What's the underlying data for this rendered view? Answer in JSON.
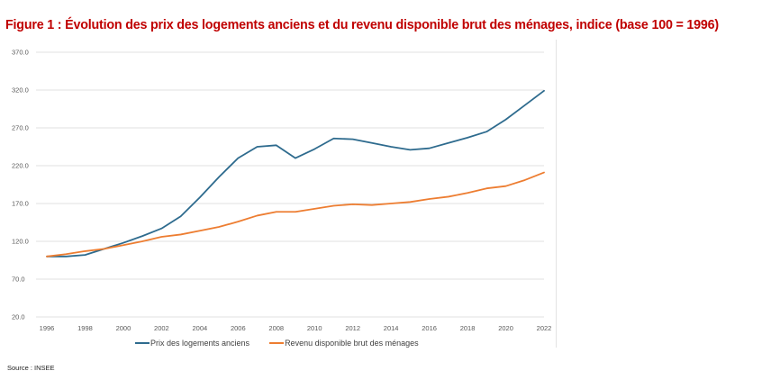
{
  "title": "Figure 1 : Évolution des prix des logements anciens et du revenu disponible brut des ménages, indice (base 100 = 1996)",
  "source": "Source : INSEE",
  "colors": {
    "title": "#c00000",
    "series1": "#2e6b8e",
    "series2": "#ed7d31",
    "grid": "#d9d9d9",
    "tick_text": "#595959"
  },
  "chart_data": {
    "type": "line",
    "title": "",
    "xlabel": "",
    "ylabel": "",
    "x": [
      1996,
      1997,
      1998,
      1999,
      2000,
      2001,
      2002,
      2003,
      2004,
      2005,
      2006,
      2007,
      2008,
      2009,
      2010,
      2011,
      2012,
      2013,
      2014,
      2015,
      2016,
      2017,
      2018,
      2019,
      2020,
      2021,
      2022
    ],
    "x_ticks": [
      "1996",
      "1998",
      "2000",
      "2002",
      "2004",
      "2006",
      "2008",
      "2010",
      "2012",
      "2014",
      "2016",
      "2018",
      "2020",
      "2022"
    ],
    "y_ticks": [
      "20.0",
      "70.0",
      "120.0",
      "170.0",
      "220.0",
      "270.0",
      "320.0",
      "370.0"
    ],
    "ylim": [
      20,
      370
    ],
    "grid": true,
    "legend_position": "bottom",
    "series": [
      {
        "name": "Prix des logements anciens",
        "color": "#2e6b8e",
        "values": [
          100,
          100,
          102,
          110,
          118,
          127,
          137,
          153,
          178,
          205,
          230,
          245,
          247,
          230,
          242,
          256,
          255,
          250,
          245,
          241,
          243,
          250,
          257,
          265,
          281,
          300,
          319
        ]
      },
      {
        "name": "Revenu disponible brut des ménages",
        "color": "#ed7d31",
        "values": [
          100,
          103,
          107,
          110,
          115,
          120,
          126,
          129,
          134,
          139,
          146,
          154,
          159,
          159,
          163,
          167,
          169,
          168,
          170,
          172,
          176,
          179,
          184,
          190,
          193,
          201,
          211
        ]
      }
    ]
  }
}
